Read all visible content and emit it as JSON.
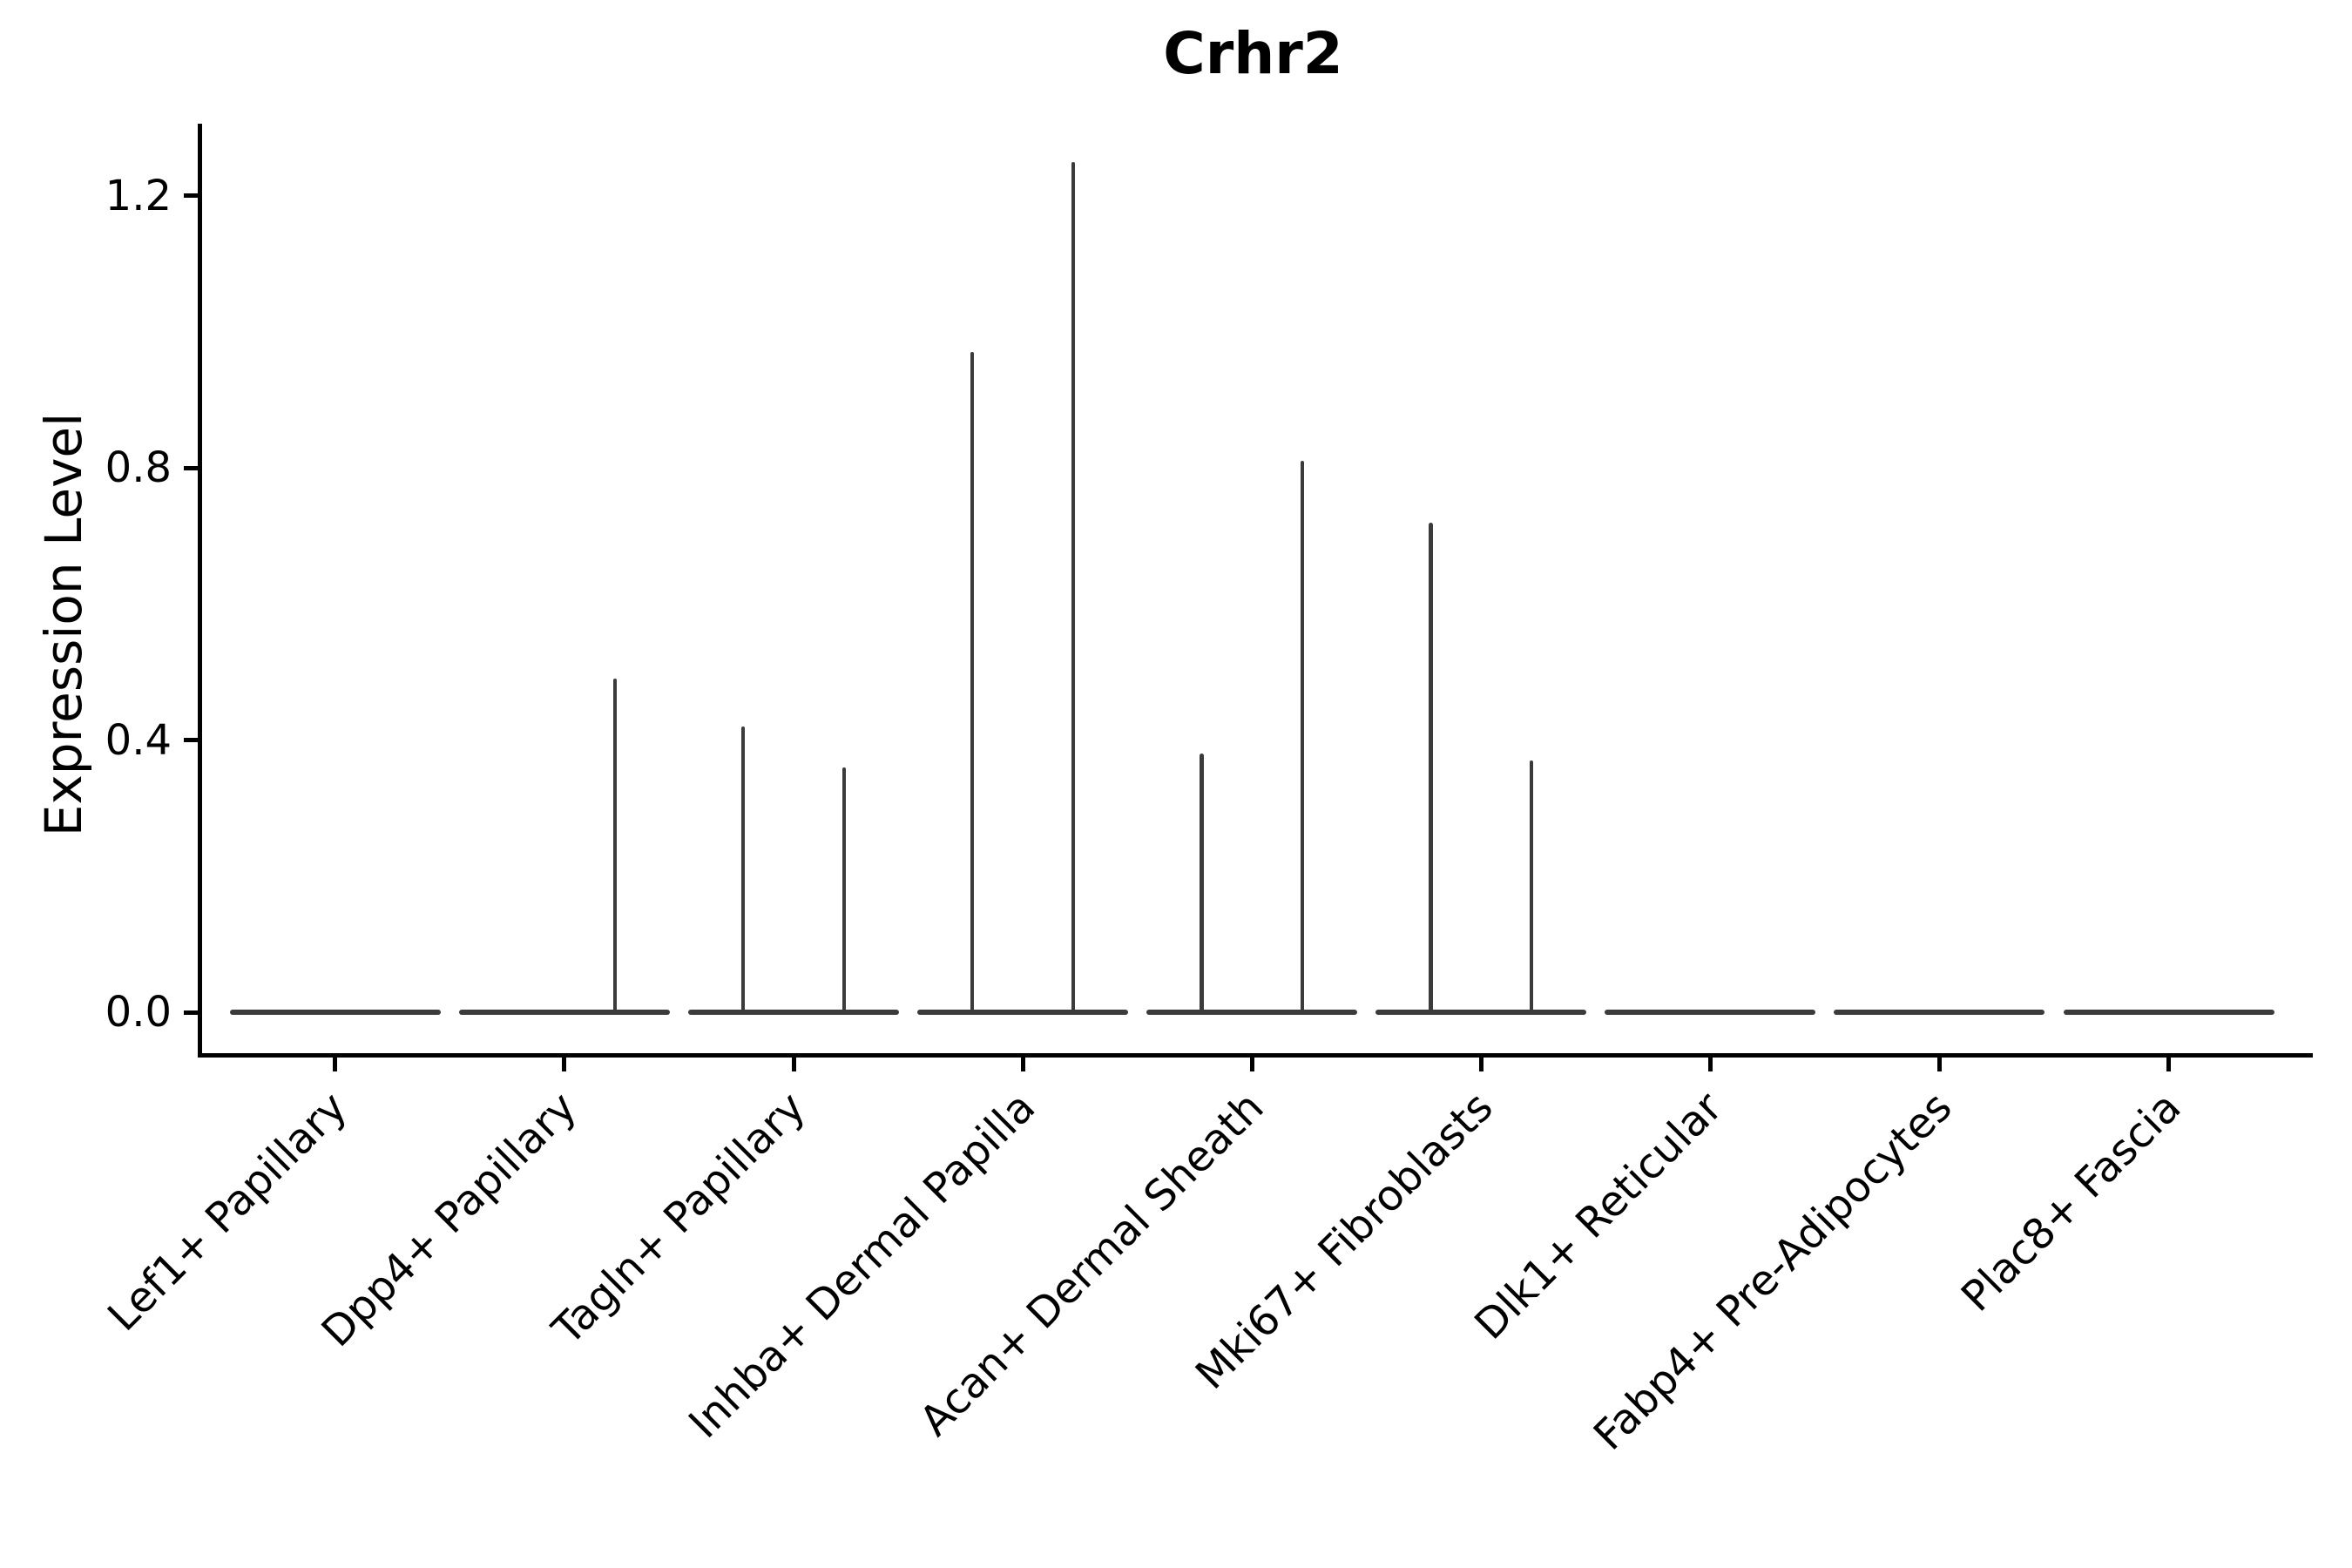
{
  "figure": {
    "title": "Crhr2"
  },
  "axes": {
    "ylabel": "Expression Level"
  },
  "chart_data": {
    "type": "violin",
    "title": "Crhr2",
    "xlabel": "",
    "ylabel": "Expression Level",
    "categories": [
      "Lef1+ Papillary",
      "Dpp4+ Papillary",
      "Tagln+ Papillary",
      "Inhba+ Dermal Papilla",
      "Acan+ Dermal Sheath",
      "Mki67+ Fibroblasts",
      "Dlk1+ Reticular",
      "Fabp4+ Pre-Adipocytes",
      "Plac8+ Fascia"
    ],
    "yticks": [
      0.0,
      0.4,
      0.8,
      1.2
    ],
    "ytick_labels": [
      "0.0",
      "0.4",
      "0.8",
      "1.2"
    ],
    "ylim": [
      -0.06,
      1.306
    ],
    "xlim": [
      -0.6,
      8.61
    ],
    "grid": false,
    "legend": null,
    "style": {
      "line_color": "#3b3b3b",
      "axis_color": "#000000",
      "violin_width": 0.92,
      "label_rotation_deg": 45
    },
    "violins": [
      {
        "category": "Lef1+ Papillary",
        "body_at_zero": true,
        "spikes": []
      },
      {
        "category": "Dpp4+ Papillary",
        "body_at_zero": true,
        "spikes": [
          {
            "offset": 0.22,
            "value": 0.49
          }
        ]
      },
      {
        "category": "Tagln+ Papillary",
        "body_at_zero": true,
        "spikes": [
          {
            "offset": -0.22,
            "value": 0.42
          },
          {
            "offset": 0.22,
            "value": 0.36
          }
        ]
      },
      {
        "category": "Inhba+ Dermal Papilla",
        "body_at_zero": true,
        "spikes": [
          {
            "offset": -0.22,
            "value": 0.97
          },
          {
            "offset": 0.22,
            "value": 1.25
          }
        ]
      },
      {
        "category": "Acan+ Dermal Sheath",
        "body_at_zero": true,
        "spikes": [
          {
            "offset": -0.22,
            "value": 0.38
          },
          {
            "offset": 0.22,
            "value": 0.81
          }
        ]
      },
      {
        "category": "Mki67+ Fibroblasts",
        "body_at_zero": true,
        "spikes": [
          {
            "offset": -0.22,
            "value": 0.72
          },
          {
            "offset": 0.22,
            "value": 0.37
          }
        ]
      },
      {
        "category": "Dlk1+ Reticular",
        "body_at_zero": true,
        "spikes": []
      },
      {
        "category": "Fabp4+ Pre-Adipocytes",
        "body_at_zero": true,
        "spikes": []
      },
      {
        "category": "Plac8+ Fascia",
        "body_at_zero": true,
        "spikes": []
      }
    ]
  }
}
